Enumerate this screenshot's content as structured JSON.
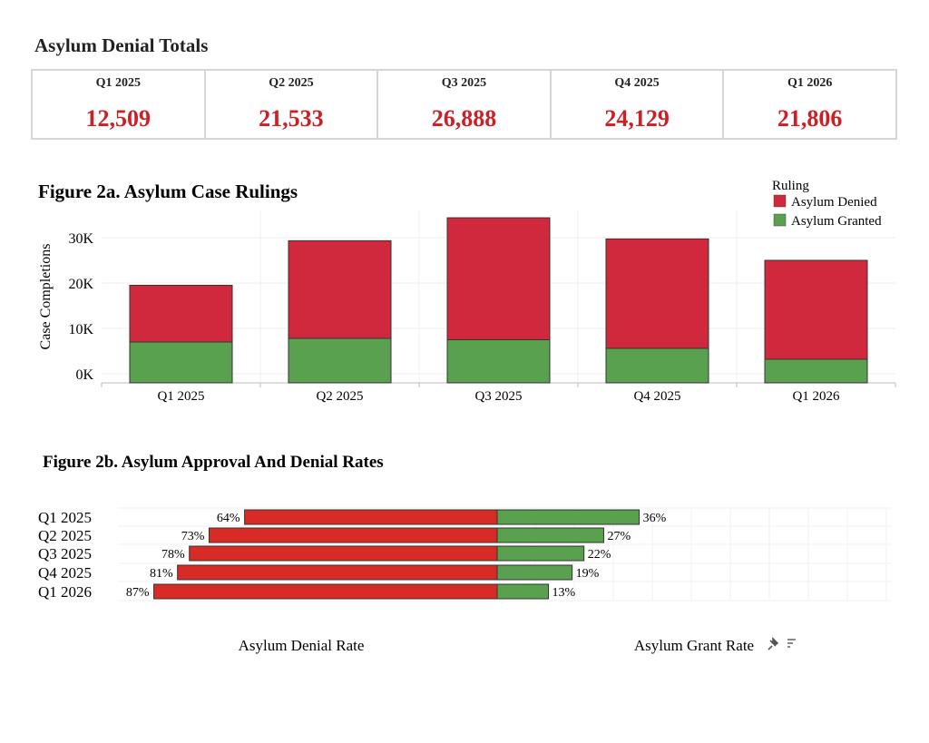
{
  "title": "Asylum Denial Totals",
  "kpis": [
    {
      "quarter": "Q1 2025",
      "value": "12,509"
    },
    {
      "quarter": "Q2 2025",
      "value": "21,533"
    },
    {
      "quarter": "Q3 2025",
      "value": "26,888"
    },
    {
      "quarter": "Q4 2025",
      "value": "24,129"
    },
    {
      "quarter": "Q1 2026",
      "value": "21,806"
    }
  ],
  "colors": {
    "denied": "#d0283c",
    "granted": "#59a14f",
    "denied_rate": "#d92b25",
    "kpi_text": "#cc2027"
  },
  "icons": [
    "pin-icon",
    "sort-icon"
  ],
  "chart_data": [
    {
      "type": "bar",
      "stacked": true,
      "title": "Figure 2a. Asylum Case Rulings",
      "ylabel": "Case Completions",
      "xlabel": "",
      "categories": [
        "Q1 2025",
        "Q2 2025",
        "Q3 2025",
        "Q4 2025",
        "Q1 2026"
      ],
      "series": [
        {
          "name": "Asylum Granted",
          "values": [
            7000,
            7800,
            7500,
            5600,
            3200
          ]
        },
        {
          "name": "Asylum Denied",
          "values": [
            12509,
            21533,
            26888,
            24129,
            21806
          ]
        }
      ],
      "ylim": [
        -2000,
        36000
      ],
      "yticks": [
        0,
        10000,
        20000,
        30000
      ],
      "ytick_labels": [
        "0K",
        "10K",
        "20K",
        "30K"
      ],
      "legend_title": "Ruling",
      "legend_items": [
        "Asylum Denied",
        "Asylum Granted"
      ],
      "legend_placement": "top-right",
      "grid": true
    },
    {
      "type": "bar",
      "orientation": "horizontal-diverging",
      "title": "Figure 2b. Asylum Approval And Denial Rates",
      "categories": [
        "Q1 2025",
        "Q2 2025",
        "Q3 2025",
        "Q4 2025",
        "Q1 2026"
      ],
      "series": [
        {
          "name": "Asylum Denial Rate",
          "values": [
            64,
            73,
            78,
            81,
            87
          ]
        },
        {
          "name": "Asylum Grant Rate",
          "values": [
            36,
            27,
            22,
            19,
            13
          ]
        }
      ],
      "value_labels_denied": [
        "64%",
        "73%",
        "78%",
        "81%",
        "87%"
      ],
      "value_labels_granted": [
        "36%",
        "27%",
        "22%",
        "19%",
        "13%"
      ],
      "xlabel_left": "Asylum Denial Rate",
      "xlabel_right": "Asylum Grant Rate",
      "grid": true
    }
  ]
}
